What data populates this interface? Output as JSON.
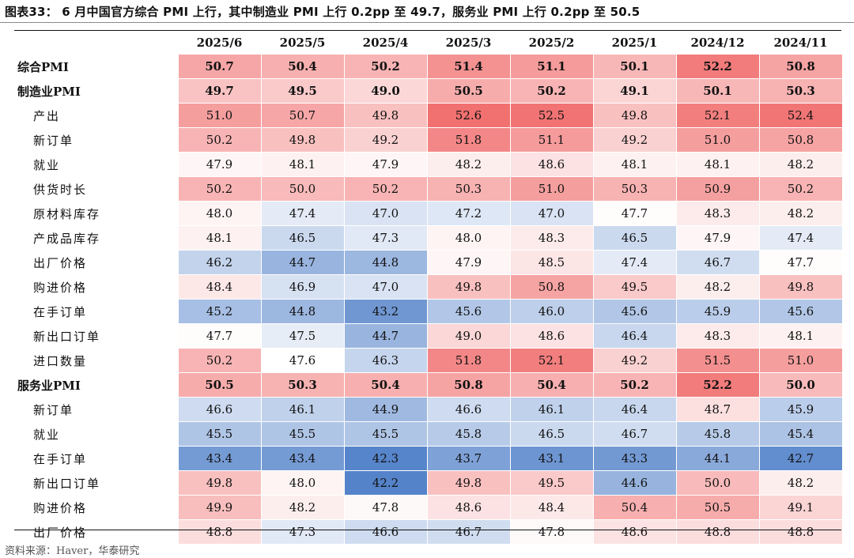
{
  "title": "图表33： 6 月中国官方综合 PMI 上行，其中制造业 PMI 上行 0.2pp 至 49.7，服务业 PMI 上行 0.2pp 至 50.5",
  "source": "资料来源：Haver，华泰研究",
  "colors": {
    "high": "#f06a6a",
    "mid": "#ffffff",
    "low": "#4f7fc8"
  },
  "columns": [
    "2025/6",
    "2025/5",
    "2025/4",
    "2025/3",
    "2025/2",
    "2025/1",
    "2024/12",
    "2024/11"
  ],
  "rows": [
    {
      "label": "综合PMI",
      "bold": true,
      "indent": false,
      "values": [
        "50.7",
        "50.4",
        "50.2",
        "51.4",
        "51.1",
        "50.1",
        "52.2",
        "50.8"
      ]
    },
    {
      "label": "制造业PMI",
      "bold": true,
      "indent": false,
      "values": [
        "49.7",
        "49.5",
        "49.0",
        "50.5",
        "50.2",
        "49.1",
        "50.1",
        "50.3"
      ]
    },
    {
      "label": "产出",
      "bold": false,
      "indent": true,
      "values": [
        "51.0",
        "50.7",
        "49.8",
        "52.6",
        "52.5",
        "49.8",
        "52.1",
        "52.4"
      ]
    },
    {
      "label": "新订单",
      "bold": false,
      "indent": true,
      "values": [
        "50.2",
        "49.8",
        "49.2",
        "51.8",
        "51.1",
        "49.2",
        "51.0",
        "50.8"
      ]
    },
    {
      "label": "就业",
      "bold": false,
      "indent": true,
      "values": [
        "47.9",
        "48.1",
        "47.9",
        "48.2",
        "48.6",
        "48.1",
        "48.1",
        "48.2"
      ]
    },
    {
      "label": "供货时长",
      "bold": false,
      "indent": true,
      "values": [
        "50.2",
        "50.0",
        "50.2",
        "50.3",
        "51.0",
        "50.3",
        "50.9",
        "50.2"
      ]
    },
    {
      "label": "原材料库存",
      "bold": false,
      "indent": true,
      "values": [
        "48.0",
        "47.4",
        "47.0",
        "47.2",
        "47.0",
        "47.7",
        "48.3",
        "48.2"
      ]
    },
    {
      "label": "产成品库存",
      "bold": false,
      "indent": true,
      "values": [
        "48.1",
        "46.5",
        "47.3",
        "48.0",
        "48.3",
        "46.5",
        "47.9",
        "47.4"
      ]
    },
    {
      "label": "出厂价格",
      "bold": false,
      "indent": true,
      "values": [
        "46.2",
        "44.7",
        "44.8",
        "47.9",
        "48.5",
        "47.4",
        "46.7",
        "47.7"
      ]
    },
    {
      "label": "购进价格",
      "bold": false,
      "indent": true,
      "values": [
        "48.4",
        "46.9",
        "47.0",
        "49.8",
        "50.8",
        "49.5",
        "48.2",
        "49.8"
      ]
    },
    {
      "label": "在手订单",
      "bold": false,
      "indent": true,
      "values": [
        "45.2",
        "44.8",
        "43.2",
        "45.6",
        "46.0",
        "45.6",
        "45.9",
        "45.6"
      ]
    },
    {
      "label": "新出口订单",
      "bold": false,
      "indent": true,
      "values": [
        "47.7",
        "47.5",
        "44.7",
        "49.0",
        "48.6",
        "46.4",
        "48.3",
        "48.1"
      ]
    },
    {
      "label": "进口数量",
      "bold": false,
      "indent": true,
      "values": [
        "50.2",
        "47.6",
        "46.3",
        "51.8",
        "52.1",
        "49.2",
        "51.5",
        "51.0"
      ]
    },
    {
      "label": "服务业PMI",
      "bold": true,
      "indent": false,
      "values": [
        "50.5",
        "50.3",
        "50.4",
        "50.8",
        "50.4",
        "50.2",
        "52.2",
        "50.0"
      ]
    },
    {
      "label": "新订单",
      "bold": false,
      "indent": true,
      "values": [
        "46.6",
        "46.1",
        "44.9",
        "46.6",
        "46.1",
        "46.4",
        "48.7",
        "45.9"
      ]
    },
    {
      "label": "就业",
      "bold": false,
      "indent": true,
      "values": [
        "45.5",
        "45.5",
        "45.5",
        "45.8",
        "46.5",
        "46.7",
        "45.8",
        "45.4"
      ]
    },
    {
      "label": "在手订单",
      "bold": false,
      "indent": true,
      "values": [
        "43.4",
        "43.4",
        "42.3",
        "43.7",
        "43.1",
        "43.3",
        "44.1",
        "42.7"
      ]
    },
    {
      "label": "新出口订单",
      "bold": false,
      "indent": true,
      "values": [
        "49.8",
        "48.0",
        "42.2",
        "49.8",
        "49.5",
        "44.6",
        "50.0",
        "48.2"
      ]
    },
    {
      "label": "购进价格",
      "bold": false,
      "indent": true,
      "values": [
        "49.9",
        "48.2",
        "47.8",
        "48.6",
        "48.4",
        "50.4",
        "50.5",
        "49.1"
      ]
    },
    {
      "label": "出厂价格",
      "bold": false,
      "indent": true,
      "values": [
        "48.8",
        "47.3",
        "46.6",
        "46.7",
        "47.8",
        "48.6",
        "48.8",
        "48.8"
      ]
    }
  ]
}
